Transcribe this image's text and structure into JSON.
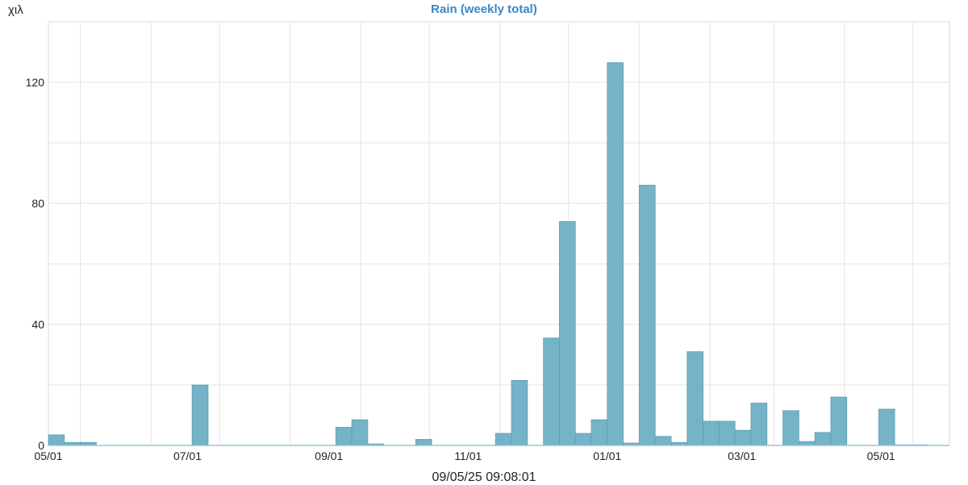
{
  "chart_data": {
    "type": "bar",
    "title": "Rain (weekly total)",
    "ylabel": "χιλ",
    "xlabel": "09/05/25 09:08:01",
    "ylim": [
      0,
      140
    ],
    "yticks": [
      0,
      40,
      80,
      120
    ],
    "x_range": [
      "2024-05-01",
      "2025-05-31"
    ],
    "xticks": [
      {
        "date": "2024-05-01",
        "label": "05/01"
      },
      {
        "date": "2024-07-01",
        "label": "07/01"
      },
      {
        "date": "2024-09-01",
        "label": "09/01"
      },
      {
        "date": "2024-11-01",
        "label": "11/01"
      },
      {
        "date": "2025-01-01",
        "label": "01/01"
      },
      {
        "date": "2025-03-01",
        "label": "03/01"
      },
      {
        "date": "2025-05-01",
        "label": "05/01"
      }
    ],
    "grid": true,
    "bar_color": "#74b3c8",
    "bar_edge_color": "#5f9db3",
    "weeks": [
      "2024-05-01",
      "2024-05-08",
      "2024-05-15",
      "2024-05-22",
      "2024-05-29",
      "2024-06-05",
      "2024-06-12",
      "2024-06-19",
      "2024-06-26",
      "2024-07-03",
      "2024-07-10",
      "2024-07-17",
      "2024-07-24",
      "2024-07-31",
      "2024-08-07",
      "2024-08-14",
      "2024-08-21",
      "2024-08-28",
      "2024-09-04",
      "2024-09-11",
      "2024-09-18",
      "2024-09-25",
      "2024-10-02",
      "2024-10-09",
      "2024-10-16",
      "2024-10-23",
      "2024-10-30",
      "2024-11-06",
      "2024-11-13",
      "2024-11-20",
      "2024-11-27",
      "2024-12-04",
      "2024-12-11",
      "2024-12-18",
      "2024-12-25",
      "2025-01-01",
      "2025-01-08",
      "2025-01-15",
      "2025-01-22",
      "2025-01-29",
      "2025-02-05",
      "2025-02-12",
      "2025-02-19",
      "2025-02-26",
      "2025-03-05",
      "2025-03-12",
      "2025-03-19",
      "2025-03-26",
      "2025-04-02",
      "2025-04-09",
      "2025-04-16",
      "2025-04-23",
      "2025-04-30",
      "2025-05-07",
      "2025-05-14"
    ],
    "values": [
      3.5,
      1.0,
      1.0,
      0,
      0,
      0,
      0,
      0,
      0,
      20,
      0,
      0,
      0,
      0,
      0,
      0,
      0,
      0,
      6,
      8.5,
      0.5,
      0,
      0,
      2,
      0,
      0,
      0,
      0,
      4,
      21.5,
      0,
      35.5,
      74,
      4,
      8.5,
      126.5,
      0.8,
      86,
      3,
      1,
      31,
      8,
      8,
      5,
      14,
      0,
      11.5,
      1.3,
      4.3,
      16,
      0,
      0,
      12,
      0.2,
      0.2
    ]
  }
}
